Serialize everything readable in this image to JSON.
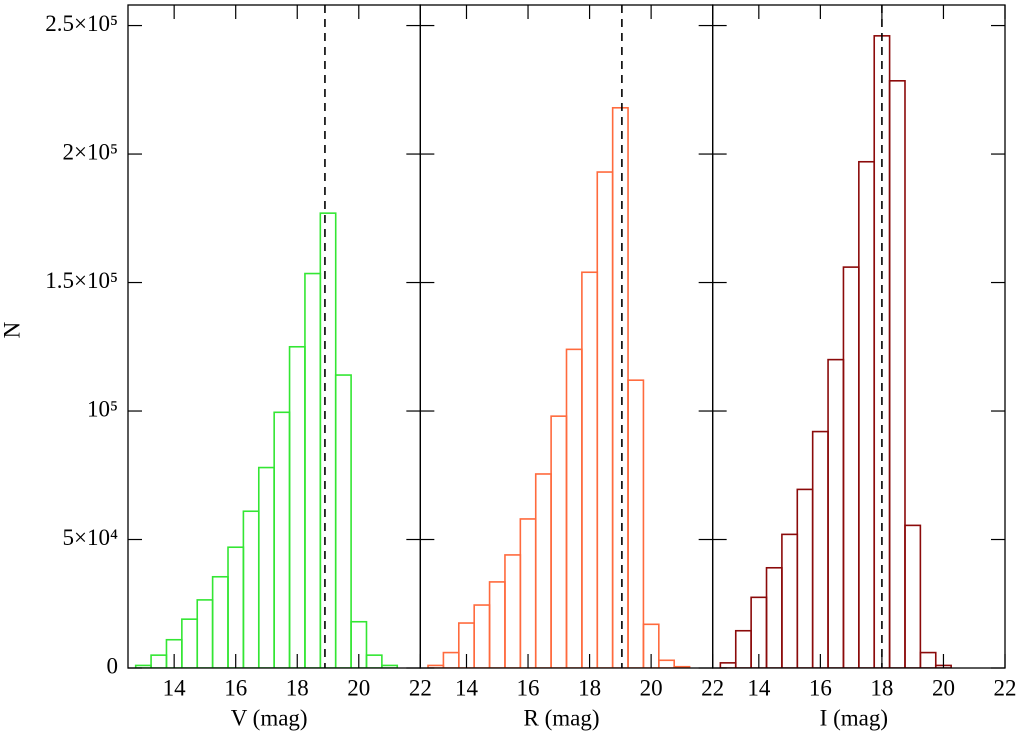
{
  "chart_data": [
    {
      "type": "histogram",
      "xlabel": "V (mag)",
      "ylabel": "N",
      "color": "#33e633",
      "bins": [
        12.75,
        13.25,
        13.75,
        14.25,
        14.75,
        15.25,
        15.75,
        16.25,
        16.75,
        17.25,
        17.75,
        18.25,
        18.75,
        19.25,
        19.75,
        20.25,
        20.75,
        21.25,
        21.75
      ],
      "counts": [
        1000,
        5000,
        11000,
        19000,
        26500,
        35500,
        47000,
        61000,
        78000,
        99500,
        125000,
        153500,
        177000,
        114000,
        18000,
        5000,
        1000,
        0
      ],
      "vline": 18.9,
      "xlim": [
        12.5,
        22
      ],
      "xticks": [
        14,
        16,
        18,
        20,
        22
      ],
      "ylim": [
        0,
        258000
      ],
      "yticks": [
        0,
        {
          "value": 50000,
          "label": "5×10⁴"
        },
        {
          "value": 100000,
          "label": "10⁵"
        },
        {
          "value": 150000,
          "label": "1.5×10⁵"
        },
        {
          "value": 200000,
          "label": "2×10⁵"
        },
        {
          "value": 250000,
          "label": "2.5×10⁵"
        }
      ]
    },
    {
      "type": "histogram",
      "xlabel": "R (mag)",
      "color": "#ff6a3d",
      "bins": [
        12.75,
        13.25,
        13.75,
        14.25,
        14.75,
        15.25,
        15.75,
        16.25,
        16.75,
        17.25,
        17.75,
        18.25,
        18.75,
        19.25,
        19.75,
        20.25,
        20.75,
        21.25,
        21.75
      ],
      "counts": [
        1000,
        6000,
        17500,
        24500,
        33500,
        44000,
        58000,
        75500,
        98000,
        124000,
        154000,
        193000,
        218000,
        112000,
        17000,
        3000,
        500,
        0
      ],
      "vline": 19.05,
      "xlim": [
        12.5,
        22
      ],
      "xticks": [
        14,
        16,
        18,
        20,
        22
      ]
    },
    {
      "type": "histogram",
      "xlabel": "I (mag)",
      "color": "#8b0a0a",
      "bins": [
        12.75,
        13.25,
        13.75,
        14.25,
        14.75,
        15.25,
        15.75,
        16.25,
        16.75,
        17.25,
        17.75,
        18.25,
        18.75,
        19.25,
        19.75,
        20.25,
        20.75,
        21.25,
        21.75
      ],
      "counts": [
        2000,
        14500,
        27500,
        39000,
        52000,
        69500,
        92000,
        120000,
        156000,
        197000,
        246000,
        228500,
        55500,
        6000,
        1000,
        0,
        0,
        0
      ],
      "vline": 18.0,
      "xlim": [
        12.5,
        22
      ],
      "xticks": [
        14,
        16,
        18,
        20,
        22
      ]
    }
  ]
}
